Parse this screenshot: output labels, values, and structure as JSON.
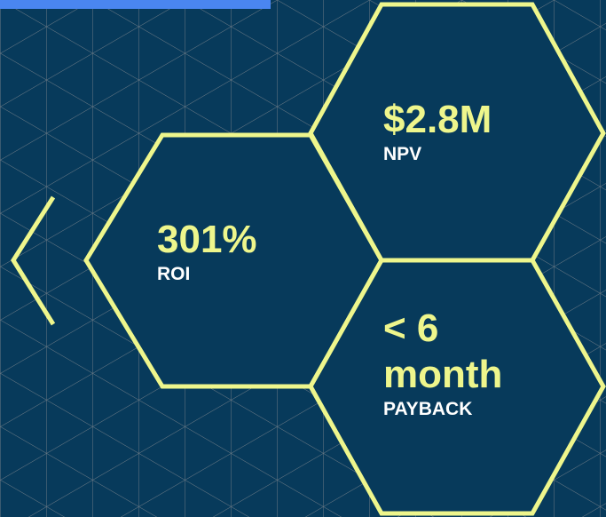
{
  "metrics": [
    {
      "value": "301%",
      "label": "ROI"
    },
    {
      "value": "$2.8M",
      "label": "NPV"
    },
    {
      "value": "< 6 month",
      "label": "PAYBACK"
    }
  ]
}
